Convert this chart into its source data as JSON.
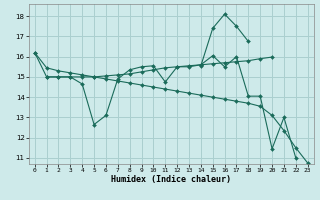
{
  "background_color": "#ceeaea",
  "grid_color": "#aacfcf",
  "line_color": "#1a6b5a",
  "xlabel": "Humidex (Indice chaleur)",
  "xlim": [
    -0.5,
    23.5
  ],
  "ylim": [
    10.7,
    18.6
  ],
  "yticks": [
    11,
    12,
    13,
    14,
    15,
    16,
    17,
    18
  ],
  "xticks": [
    0,
    1,
    2,
    3,
    4,
    5,
    6,
    7,
    8,
    9,
    10,
    11,
    12,
    13,
    14,
    15,
    16,
    17,
    18,
    19,
    20,
    21,
    22,
    23
  ],
  "series1_x": [
    0,
    1,
    2,
    3,
    4,
    5,
    6,
    7,
    8,
    9,
    10,
    11,
    12,
    13,
    14,
    15,
    16,
    17,
    18,
    19,
    20,
    21,
    22,
    23
  ],
  "series1_y": [
    16.2,
    15.0,
    15.0,
    15.0,
    14.65,
    12.65,
    13.1,
    14.9,
    15.35,
    15.5,
    15.55,
    14.75,
    15.5,
    15.5,
    15.6,
    16.05,
    15.5,
    16.0,
    14.05,
    14.05,
    11.45,
    13.0,
    11.0,
    null
  ],
  "series2_x": [
    14,
    15,
    16,
    17,
    18
  ],
  "series2_y": [
    15.55,
    17.4,
    18.1,
    17.5,
    16.75
  ],
  "series3_x": [
    0,
    1,
    2,
    3,
    4,
    5,
    6,
    7,
    8,
    9,
    10,
    11,
    12,
    13,
    14,
    15,
    16,
    17,
    18,
    19,
    20,
    21,
    22,
    23
  ],
  "series3_y": [
    16.2,
    15.45,
    15.3,
    15.2,
    15.1,
    15.0,
    14.9,
    14.8,
    14.7,
    14.6,
    14.5,
    14.4,
    14.3,
    14.2,
    14.1,
    14.0,
    13.9,
    13.8,
    13.7,
    13.55,
    13.1,
    12.35,
    11.5,
    10.75
  ],
  "series4_x": [
    1,
    2,
    3,
    4,
    5,
    6,
    7,
    8,
    9,
    10,
    11,
    12,
    13,
    14,
    15,
    16,
    17,
    18,
    19,
    20
  ],
  "series4_y": [
    15.0,
    15.0,
    15.0,
    15.0,
    15.0,
    15.05,
    15.1,
    15.15,
    15.25,
    15.35,
    15.45,
    15.5,
    15.55,
    15.6,
    15.65,
    15.7,
    15.75,
    15.8,
    15.9,
    15.98
  ]
}
